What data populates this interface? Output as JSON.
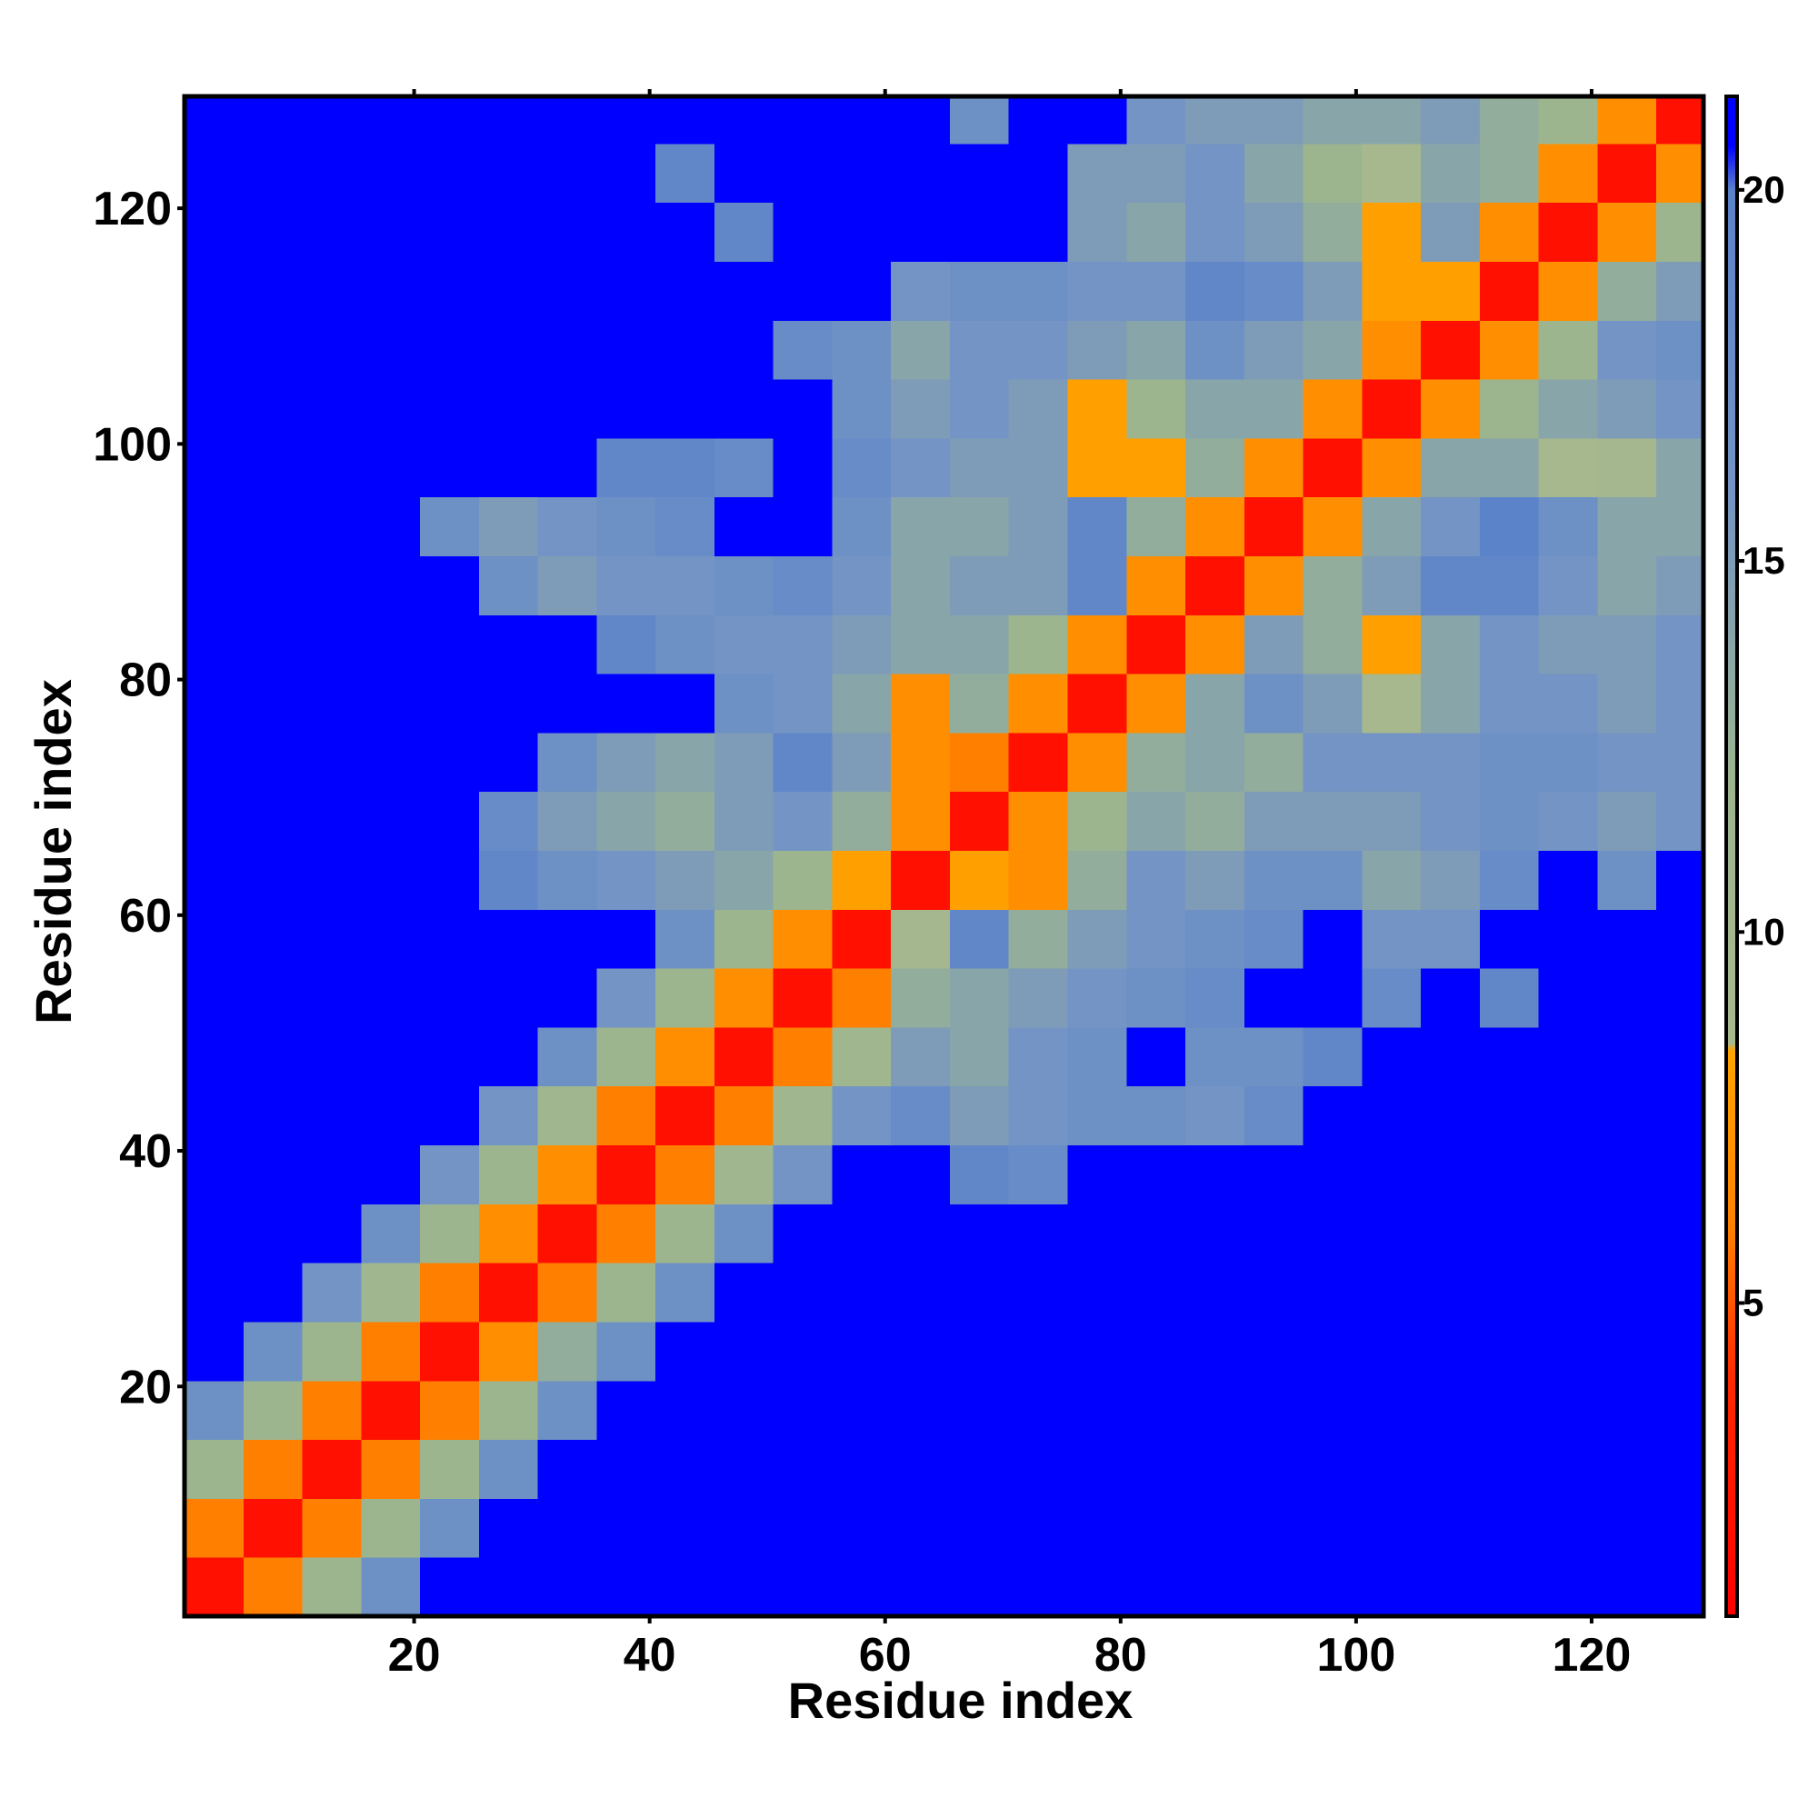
{
  "chart_data": {
    "type": "heatmap",
    "xlabel": "Residue index",
    "ylabel": "Residue index",
    "xlim": [
      0.5,
      129.5
    ],
    "ylim": [
      0.5,
      129.5
    ],
    "xticks": [
      20,
      40,
      60,
      80,
      100,
      120
    ],
    "yticks": [
      20,
      40,
      60,
      80,
      100,
      120
    ],
    "xbins": [
      0.5,
      5.5,
      10.5,
      15.5,
      20.5,
      25.5,
      30.5,
      35.5,
      40.5,
      45.5,
      50.5,
      55.5,
      60.5,
      65.5,
      70.5,
      75.5,
      80.5,
      85.5,
      90.5,
      95.5,
      100.5,
      105.5,
      110.5,
      115.5,
      120.5,
      125.5,
      129.5
    ],
    "ybins": [
      0.5,
      5.5,
      10.5,
      15.5,
      20.5,
      25.5,
      30.5,
      35.5,
      40.5,
      45.5,
      50.5,
      55.5,
      60.5,
      65.5,
      70.5,
      75.5,
      80.5,
      85.5,
      90.5,
      95.5,
      100.5,
      105.5,
      110.5,
      115.5,
      120.5,
      125.5,
      129.5
    ],
    "z": [
      [
        2,
        6,
        12,
        17,
        21,
        21,
        21,
        21,
        21,
        21,
        21,
        21,
        21,
        21,
        21,
        21,
        21,
        21,
        21,
        21,
        21,
        21,
        21,
        21,
        21,
        21
      ],
      [
        6,
        2,
        6,
        12,
        17,
        21,
        21,
        21,
        21,
        21,
        21,
        21,
        21,
        21,
        21,
        21,
        21,
        21,
        21,
        21,
        21,
        21,
        21,
        21,
        21,
        21
      ],
      [
        12,
        6,
        2,
        6,
        12,
        17,
        21,
        21,
        21,
        21,
        21,
        21,
        21,
        21,
        21,
        21,
        21,
        21,
        21,
        21,
        21,
        21,
        21,
        21,
        21,
        21
      ],
      [
        17,
        12,
        6,
        2,
        6,
        12,
        17,
        21,
        21,
        21,
        21,
        21,
        21,
        21,
        21,
        21,
        21,
        21,
        21,
        21,
        21,
        21,
        21,
        21,
        21,
        21
      ],
      [
        21,
        17,
        12,
        6,
        2,
        7,
        13,
        17,
        21,
        21,
        21,
        21,
        21,
        21,
        21,
        21,
        21,
        21,
        21,
        21,
        21,
        21,
        21,
        21,
        21,
        21
      ],
      [
        21,
        21,
        16,
        11,
        6,
        2,
        6,
        12,
        17,
        21,
        21,
        21,
        21,
        21,
        21,
        21,
        21,
        21,
        21,
        21,
        21,
        21,
        21,
        21,
        21,
        21
      ],
      [
        21,
        21,
        21,
        17,
        12,
        7,
        2,
        6,
        12,
        17,
        21,
        21,
        21,
        21,
        21,
        21,
        21,
        21,
        21,
        21,
        21,
        21,
        21,
        21,
        21,
        21
      ],
      [
        21,
        21,
        21,
        21,
        16,
        12,
        7,
        2,
        6,
        11,
        16,
        21,
        21,
        19,
        18,
        21,
        21,
        21,
        21,
        21,
        21,
        21,
        21,
        21,
        21,
        21
      ],
      [
        21,
        21,
        21,
        21,
        21,
        16,
        11,
        6,
        2,
        6,
        11,
        16,
        18,
        15,
        16,
        17,
        17,
        16,
        18,
        21,
        21,
        21,
        21,
        21,
        21,
        21
      ],
      [
        21,
        21,
        21,
        21,
        21,
        21,
        17,
        12,
        7,
        2,
        6,
        11,
        15,
        14,
        16,
        17,
        21,
        17,
        17,
        19,
        21,
        21,
        21,
        21,
        21,
        21
      ],
      [
        21,
        21,
        21,
        21,
        21,
        21,
        21,
        16,
        12,
        7,
        2,
        6,
        13,
        14,
        15,
        16,
        17,
        18,
        21,
        21,
        18,
        21,
        19,
        21,
        21,
        21
      ],
      [
        21,
        21,
        21,
        21,
        21,
        21,
        21,
        21,
        17,
        12,
        7,
        2,
        10,
        19,
        13,
        15,
        16,
        17,
        18,
        21,
        16,
        16,
        21,
        21,
        21,
        21
      ],
      [
        21,
        21,
        21,
        21,
        21,
        19,
        17,
        16,
        15,
        14,
        12,
        8,
        2,
        8,
        7,
        13,
        16,
        15,
        17,
        17,
        14,
        15,
        18,
        21,
        17,
        21
      ],
      [
        21,
        21,
        21,
        21,
        21,
        18,
        15,
        14,
        13,
        15,
        16,
        13,
        7,
        2,
        7,
        12,
        14,
        13,
        15,
        15,
        15,
        16,
        17,
        16,
        15,
        16
      ],
      [
        21,
        21,
        21,
        21,
        21,
        21,
        17,
        15,
        14,
        15,
        19,
        15,
        7,
        6,
        2,
        7,
        13,
        14,
        13,
        16,
        16,
        16,
        17,
        17,
        16,
        16
      ],
      [
        21,
        21,
        21,
        21,
        21,
        21,
        21,
        21,
        21,
        17,
        16,
        14,
        7,
        13,
        7,
        2,
        7,
        14,
        17,
        15,
        9,
        14,
        16,
        16,
        15,
        16
      ],
      [
        21,
        21,
        21,
        21,
        21,
        21,
        21,
        19,
        17,
        16,
        16,
        15,
        14,
        14,
        12,
        7,
        2,
        7,
        15,
        13,
        8,
        14,
        16,
        15,
        15,
        16
      ],
      [
        21,
        21,
        21,
        21,
        21,
        17,
        15,
        16,
        16,
        17,
        18,
        16,
        14,
        15,
        15,
        19,
        7,
        2,
        7,
        13,
        15,
        19,
        19,
        16,
        14,
        15
      ],
      [
        21,
        21,
        21,
        21,
        17,
        15,
        16,
        17,
        18,
        21,
        21,
        17,
        14,
        14,
        15,
        19,
        13,
        7,
        2,
        7,
        14,
        16,
        20,
        17,
        14,
        14
      ],
      [
        21,
        21,
        21,
        21,
        21,
        21,
        21,
        19,
        19,
        18,
        21,
        18,
        16,
        15,
        15,
        8,
        8,
        13,
        7,
        2,
        7,
        14,
        14,
        9,
        10,
        14
      ],
      [
        21,
        21,
        21,
        21,
        21,
        21,
        21,
        21,
        21,
        21,
        21,
        17,
        15,
        16,
        15,
        8,
        12,
        14,
        14,
        7,
        2,
        7,
        12,
        14,
        15,
        16
      ],
      [
        21,
        21,
        21,
        21,
        21,
        21,
        21,
        21,
        21,
        21,
        18,
        17,
        14,
        16,
        16,
        15,
        14,
        17,
        15,
        14,
        7,
        2,
        7,
        12,
        16,
        17
      ],
      [
        21,
        21,
        21,
        21,
        21,
        21,
        21,
        21,
        21,
        21,
        21,
        21,
        16,
        17,
        17,
        16,
        16,
        19,
        18,
        15,
        8,
        8,
        2,
        7,
        13,
        15
      ],
      [
        21,
        21,
        21,
        21,
        21,
        21,
        21,
        21,
        21,
        19,
        21,
        21,
        21,
        21,
        21,
        15,
        14,
        16,
        15,
        13,
        8,
        15,
        7,
        2,
        7,
        12
      ],
      [
        21,
        21,
        21,
        21,
        21,
        21,
        21,
        21,
        19,
        21,
        21,
        21,
        21,
        21,
        21,
        15,
        15,
        16,
        14,
        12,
        9,
        14,
        13,
        7,
        2,
        7
      ],
      [
        21,
        21,
        21,
        21,
        21,
        21,
        21,
        21,
        21,
        21,
        21,
        21,
        21,
        17,
        21,
        21,
        16,
        15,
        15,
        14,
        14,
        15,
        13,
        12,
        7,
        2
      ]
    ],
    "colorbar": {
      "lim": [
        0.78,
        21.26
      ],
      "ticks": [
        5,
        10,
        15,
        20
      ],
      "stops": [
        {
          "value": 0.78,
          "color": "#ff0000"
        },
        {
          "value": 4,
          "color": "#ff2a00"
        },
        {
          "value": 6,
          "color": "#ff8000"
        },
        {
          "value": 8.4,
          "color": "#ffa500"
        },
        {
          "value": 8.5,
          "color": "#a9b98e"
        },
        {
          "value": 12,
          "color": "#9db58f"
        },
        {
          "value": 16,
          "color": "#7394c4"
        },
        {
          "value": 20,
          "color": "#5b83c9"
        },
        {
          "value": 20.6,
          "color": "#0000ff"
        },
        {
          "value": 21.26,
          "color": "#0000ff"
        }
      ]
    }
  }
}
